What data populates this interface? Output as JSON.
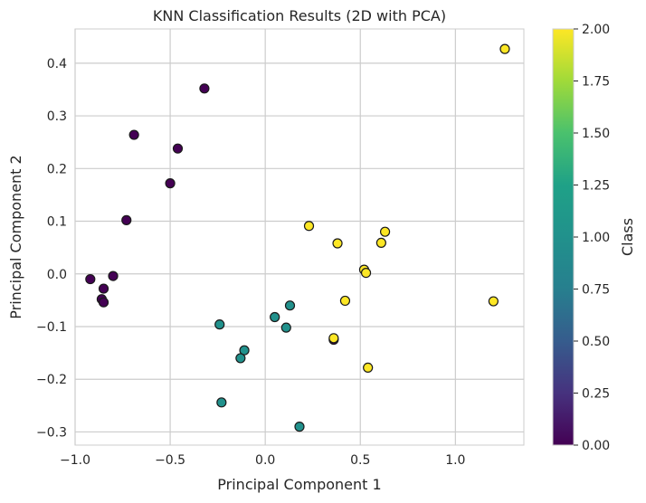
{
  "chart_data": {
    "type": "scatter",
    "title": "KNN Classification Results (2D with PCA)",
    "xlabel": "Principal Component 1",
    "ylabel": "Principal Component 2",
    "xlim": [
      -1.0,
      1.36
    ],
    "ylim": [
      -0.325,
      0.465
    ],
    "xticks": [
      -1.0,
      -0.5,
      0.0,
      0.5,
      1.0
    ],
    "yticks": [
      -0.3,
      -0.2,
      -0.1,
      0.0,
      0.1,
      0.2,
      0.3,
      0.4
    ],
    "xtick_labels": [
      "−1.0",
      "−0.5",
      "0.0",
      "0.5",
      "1.0"
    ],
    "ytick_labels": [
      "−0.3",
      "−0.2",
      "−0.1",
      "0.0",
      "0.1",
      "0.2",
      "0.3",
      "0.4"
    ],
    "grid": true,
    "colorbar": {
      "label": "Class",
      "colormap": "viridis",
      "range": [
        0.0,
        2.0
      ],
      "ticks": [
        0.0,
        0.25,
        0.5,
        0.75,
        1.0,
        1.25,
        1.5,
        1.75,
        2.0
      ],
      "tick_labels": [
        "0.00",
        "0.25",
        "0.50",
        "0.75",
        "1.00",
        "1.25",
        "1.50",
        "1.75",
        "2.00"
      ]
    },
    "class_colors": {
      "0": "#440154",
      "1": "#21918c",
      "2": "#fde725"
    },
    "points": [
      {
        "x": -0.32,
        "y": 0.352,
        "c": 0
      },
      {
        "x": -0.69,
        "y": 0.264,
        "c": 0
      },
      {
        "x": -0.46,
        "y": 0.238,
        "c": 0
      },
      {
        "x": -0.5,
        "y": 0.172,
        "c": 0
      },
      {
        "x": -0.73,
        "y": 0.102,
        "c": 0
      },
      {
        "x": -0.92,
        "y": -0.01,
        "c": 0
      },
      {
        "x": -0.8,
        "y": -0.004,
        "c": 0
      },
      {
        "x": -0.85,
        "y": -0.028,
        "c": 0
      },
      {
        "x": -0.86,
        "y": -0.048,
        "c": 0
      },
      {
        "x": -0.85,
        "y": -0.054,
        "c": 0
      },
      {
        "x": 0.36,
        "y": -0.125,
        "c": 0
      },
      {
        "x": 0.13,
        "y": -0.06,
        "c": 1
      },
      {
        "x": 0.05,
        "y": -0.082,
        "c": 1
      },
      {
        "x": 0.11,
        "y": -0.102,
        "c": 1
      },
      {
        "x": -0.24,
        "y": -0.096,
        "c": 1
      },
      {
        "x": -0.11,
        "y": -0.145,
        "c": 1
      },
      {
        "x": -0.13,
        "y": -0.16,
        "c": 1
      },
      {
        "x": -0.23,
        "y": -0.244,
        "c": 1
      },
      {
        "x": 0.18,
        "y": -0.29,
        "c": 1
      },
      {
        "x": 1.26,
        "y": 0.427,
        "c": 2
      },
      {
        "x": 0.23,
        "y": 0.091,
        "c": 2
      },
      {
        "x": 0.38,
        "y": 0.058,
        "c": 2
      },
      {
        "x": 0.63,
        "y": 0.08,
        "c": 2
      },
      {
        "x": 0.61,
        "y": 0.059,
        "c": 2
      },
      {
        "x": 0.52,
        "y": 0.008,
        "c": 2
      },
      {
        "x": 0.53,
        "y": 0.002,
        "c": 2
      },
      {
        "x": 0.42,
        "y": -0.051,
        "c": 2
      },
      {
        "x": 1.2,
        "y": -0.052,
        "c": 2
      },
      {
        "x": 0.36,
        "y": -0.122,
        "c": 2
      },
      {
        "x": 0.54,
        "y": -0.178,
        "c": 2
      }
    ]
  }
}
